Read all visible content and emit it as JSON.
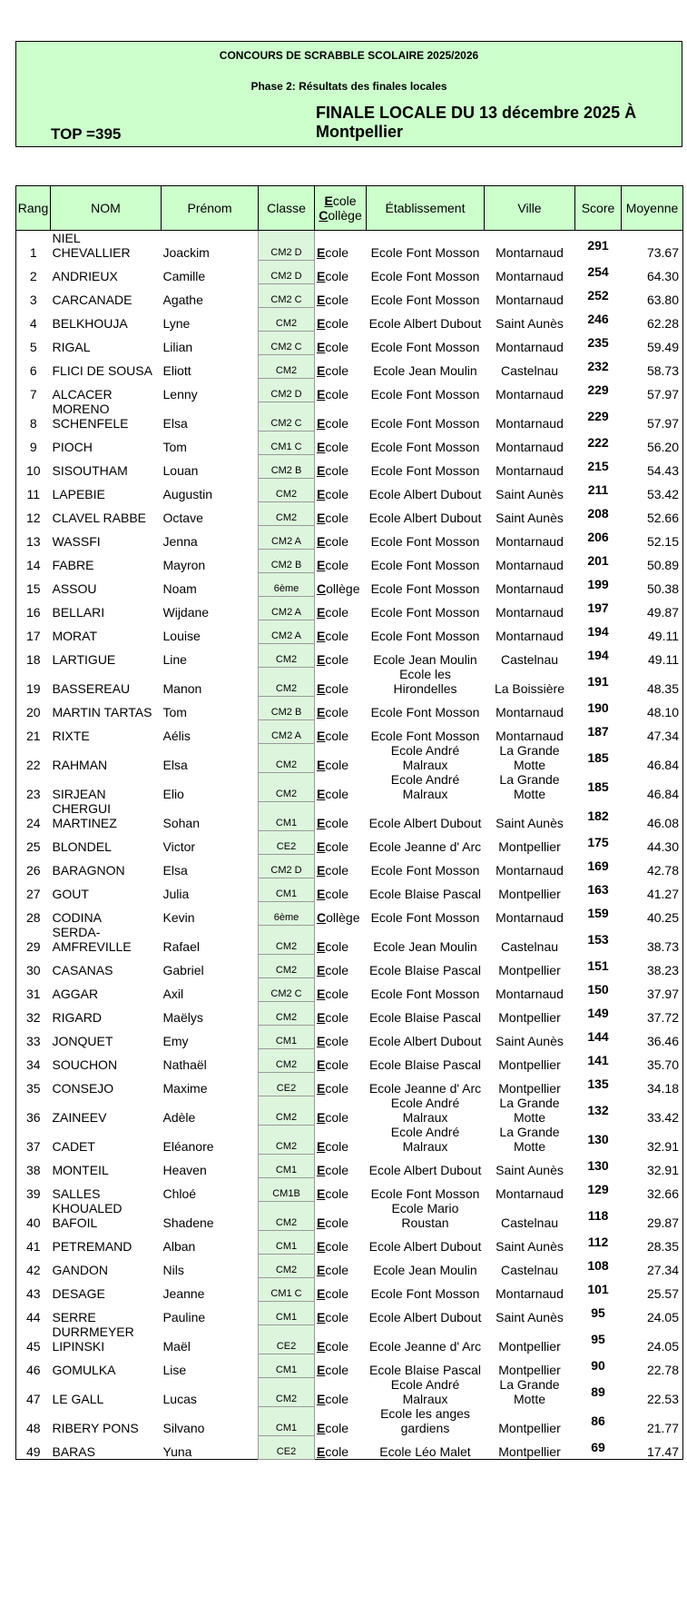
{
  "header": {
    "title": "CONCOURS DE SCRABBLE SCOLAIRE 2025/2026",
    "subtitle": "Phase 2: Résultats des finales locales",
    "top": "TOP =395",
    "finale": "FINALE LOCALE DU 13 décembre 2025 À Montpellier"
  },
  "table": {
    "columns": [
      "Rang",
      "NOM",
      "Prénom",
      "Classe",
      "Ecole Collège",
      "Établissement",
      "Ville",
      "Score",
      "Moyenne"
    ],
    "rows": [
      [
        "1",
        "NIEL CHEVALLIER",
        "Joackim",
        "CM2 D",
        "Ecole",
        "Ecole Font Mosson",
        "Montarnaud",
        "291",
        "73.67"
      ],
      [
        "2",
        "ANDRIEUX",
        "Camille",
        "CM2 D",
        "Ecole",
        "Ecole Font Mosson",
        "Montarnaud",
        "254",
        "64.30"
      ],
      [
        "3",
        "CARCANADE",
        "Agathe",
        "CM2 C",
        "Ecole",
        "Ecole Font Mosson",
        "Montarnaud",
        "252",
        "63.80"
      ],
      [
        "4",
        "BELKHOUJA",
        "Lyne",
        "CM2",
        "Ecole",
        "Ecole Albert Dubout",
        "Saint Aunès",
        "246",
        "62.28"
      ],
      [
        "5",
        "RIGAL",
        "Lilian",
        "CM2 C",
        "Ecole",
        "Ecole Font Mosson",
        "Montarnaud",
        "235",
        "59.49"
      ],
      [
        "6",
        "FLICI DE SOUSA",
        "Eliott",
        "CM2",
        "Ecole",
        "Ecole Jean Moulin",
        "Castelnau",
        "232",
        "58.73"
      ],
      [
        "7",
        "ALCACER",
        "Lenny",
        "CM2 D",
        "Ecole",
        "Ecole Font Mosson",
        "Montarnaud",
        "229",
        "57.97"
      ],
      [
        "8",
        "MORENO SCHENFELE",
        "Elsa",
        "CM2 C",
        "Ecole",
        "Ecole Font Mosson",
        "Montarnaud",
        "229",
        "57.97"
      ],
      [
        "9",
        "PIOCH",
        "Tom",
        "CM1 C",
        "Ecole",
        "Ecole Font Mosson",
        "Montarnaud",
        "222",
        "56.20"
      ],
      [
        "10",
        "SISOUTHAM",
        "Louan",
        "CM2 B",
        "Ecole",
        "Ecole Font Mosson",
        "Montarnaud",
        "215",
        "54.43"
      ],
      [
        "11",
        "LAPEBIE",
        "Augustin",
        "CM2",
        "Ecole",
        "Ecole Albert Dubout",
        "Saint Aunès",
        "211",
        "53.42"
      ],
      [
        "12",
        "CLAVEL RABBE",
        "Octave",
        "CM2",
        "Ecole",
        "Ecole Albert Dubout",
        "Saint Aunès",
        "208",
        "52.66"
      ],
      [
        "13",
        "WASSFI",
        "Jenna",
        "CM2 A",
        "Ecole",
        "Ecole Font Mosson",
        "Montarnaud",
        "206",
        "52.15"
      ],
      [
        "14",
        "FABRE",
        "Mayron",
        "CM2 B",
        "Ecole",
        "Ecole Font Mosson",
        "Montarnaud",
        "201",
        "50.89"
      ],
      [
        "15",
        "ASSOU",
        "Noam",
        "6ème",
        "Collège",
        "Ecole Font Mosson",
        "Montarnaud",
        "199",
        "50.38"
      ],
      [
        "16",
        "BELLARI",
        "Wijdane",
        "CM2 A",
        "Ecole",
        "Ecole Font Mosson",
        "Montarnaud",
        "197",
        "49.87"
      ],
      [
        "17",
        "MORAT",
        "Louise",
        "CM2 A",
        "Ecole",
        "Ecole Font Mosson",
        "Montarnaud",
        "194",
        "49.11"
      ],
      [
        "18",
        "LARTIGUE",
        "Line",
        "CM2",
        "Ecole",
        "Ecole Jean Moulin",
        "Castelnau",
        "194",
        "49.11"
      ],
      [
        "19",
        "BASSEREAU",
        "Manon",
        "CM2",
        "Ecole",
        "Ecole les Hirondelles",
        "La Boissière",
        "191",
        "48.35"
      ],
      [
        "20",
        "MARTIN TARTAS",
        "Tom",
        "CM2 B",
        "Ecole",
        "Ecole Font Mosson",
        "Montarnaud",
        "190",
        "48.10"
      ],
      [
        "21",
        "RIXTE",
        "Aélis",
        "CM2 A",
        "Ecole",
        "Ecole Font Mosson",
        "Montarnaud",
        "187",
        "47.34"
      ],
      [
        "22",
        "RAHMAN",
        "Elsa",
        "CM2",
        "Ecole",
        "Ecole André Malraux",
        "La Grande Motte",
        "185",
        "46.84"
      ],
      [
        "23",
        "SIRJEAN",
        "Elio",
        "CM2",
        "Ecole",
        "Ecole André Malraux",
        "La Grande Motte",
        "185",
        "46.84"
      ],
      [
        "24",
        "CHERGUI MARTINEZ",
        "Sohan",
        "CM1",
        "Ecole",
        "Ecole Albert Dubout",
        "Saint Aunès",
        "182",
        "46.08"
      ],
      [
        "25",
        "BLONDEL",
        "Victor",
        "CE2",
        "Ecole",
        "Ecole Jeanne d' Arc",
        "Montpellier",
        "175",
        "44.30"
      ],
      [
        "26",
        "BARAGNON",
        "Elsa",
        "CM2 D",
        "Ecole",
        "Ecole Font Mosson",
        "Montarnaud",
        "169",
        "42.78"
      ],
      [
        "27",
        "GOUT",
        "Julia",
        "CM1",
        "Ecole",
        "Ecole Blaise Pascal",
        "Montpellier",
        "163",
        "41.27"
      ],
      [
        "28",
        "CODINA",
        "Kevin",
        "6ème",
        "Collège",
        "Ecole Font Mosson",
        "Montarnaud",
        "159",
        "40.25"
      ],
      [
        "29",
        "SERDA-AMFREVILLE",
        "Rafael",
        "CM2",
        "Ecole",
        "Ecole Jean Moulin",
        "Castelnau",
        "153",
        "38.73"
      ],
      [
        "30",
        "CASANAS",
        "Gabriel",
        "CM2",
        "Ecole",
        "Ecole Blaise Pascal",
        "Montpellier",
        "151",
        "38.23"
      ],
      [
        "31",
        "AGGAR",
        "Axil",
        "CM2 C",
        "Ecole",
        "Ecole Font Mosson",
        "Montarnaud",
        "150",
        "37.97"
      ],
      [
        "32",
        "RIGARD",
        "Maëlys",
        "CM2",
        "Ecole",
        "Ecole Blaise Pascal",
        "Montpellier",
        "149",
        "37.72"
      ],
      [
        "33",
        "JONQUET",
        "Emy",
        "CM1",
        "Ecole",
        "Ecole Albert Dubout",
        "Saint Aunès",
        "144",
        "36.46"
      ],
      [
        "34",
        "SOUCHON",
        "Nathaël",
        "CM2",
        "Ecole",
        "Ecole Blaise Pascal",
        "Montpellier",
        "141",
        "35.70"
      ],
      [
        "35",
        "CONSEJO",
        "Maxime",
        "CE2",
        "Ecole",
        "Ecole Jeanne d' Arc",
        "Montpellier",
        "135",
        "34.18"
      ],
      [
        "36",
        "ZAINEEV",
        "Adèle",
        "CM2",
        "Ecole",
        "Ecole André Malraux",
        "La Grande Motte",
        "132",
        "33.42"
      ],
      [
        "37",
        "CADET",
        "Eléanore",
        "CM2",
        "Ecole",
        "Ecole André Malraux",
        "La Grande Motte",
        "130",
        "32.91"
      ],
      [
        "38",
        "MONTEIL",
        "Heaven",
        "CM1",
        "Ecole",
        "Ecole Albert Dubout",
        "Saint Aunès",
        "130",
        "32.91"
      ],
      [
        "39",
        "SALLES",
        "Chloé",
        "CM1B",
        "Ecole",
        "Ecole Font Mosson",
        "Montarnaud",
        "129",
        "32.66"
      ],
      [
        "40",
        "KHOUALED BAFOIL",
        "Shadene",
        "CM2",
        "Ecole",
        "Ecole Mario Roustan",
        "Castelnau",
        "118",
        "29.87"
      ],
      [
        "41",
        "PETREMAND",
        "Alban",
        "CM1",
        "Ecole",
        "Ecole Albert Dubout",
        "Saint Aunès",
        "112",
        "28.35"
      ],
      [
        "42",
        "GANDON",
        "Nils",
        "CM2",
        "Ecole",
        "Ecole Jean Moulin",
        "Castelnau",
        "108",
        "27.34"
      ],
      [
        "43",
        "DESAGE",
        "Jeanne",
        "CM1 C",
        "Ecole",
        "Ecole Font Mosson",
        "Montarnaud",
        "101",
        "25.57"
      ],
      [
        "44",
        "SERRE",
        "Pauline",
        "CM1",
        "Ecole",
        "Ecole Albert Dubout",
        "Saint Aunès",
        "95",
        "24.05"
      ],
      [
        "45",
        "DURRMEYER LIPINSKI",
        "Maël",
        "CE2",
        "Ecole",
        "Ecole Jeanne d' Arc",
        "Montpellier",
        "95",
        "24.05"
      ],
      [
        "46",
        "GOMULKA",
        "Lise",
        "CM1",
        "Ecole",
        "Ecole Blaise Pascal",
        "Montpellier",
        "90",
        "22.78"
      ],
      [
        "47",
        "LE GALL",
        "Lucas",
        "CM2",
        "Ecole",
        "Ecole André Malraux",
        "La Grande Motte",
        "89",
        "22.53"
      ],
      [
        "48",
        "RIBERY PONS",
        "Silvano",
        "CM1",
        "Ecole",
        "Ecole les anges gardiens",
        "Montpellier",
        "86",
        "21.77"
      ],
      [
        "49",
        "BARAS",
        "Yuna",
        "CE2",
        "Ecole",
        "Ecole Léo Malet",
        "Montpellier",
        "69",
        "17.47"
      ]
    ]
  }
}
